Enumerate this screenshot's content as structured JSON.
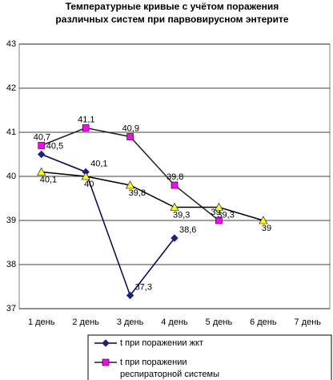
{
  "chart_data": {
    "type": "line",
    "title": [
      "Температурные кривые с учётом поражения",
      "различных систем при парвовирусном энтерите"
    ],
    "categories": [
      "1 день",
      "2 день",
      "3 день",
      "4 день",
      "5 день",
      "6 день",
      "7 день"
    ],
    "series": [
      {
        "name": "t при поражении жкт",
        "color": "#1a237e",
        "line_color": "#000060",
        "marker": "diamond",
        "values": [
          40.5,
          40.1,
          37.3,
          38.6,
          null,
          null,
          null
        ],
        "value_labels": [
          "40,5",
          "40,1",
          "37,3",
          "38,6",
          null,
          null,
          null
        ]
      },
      {
        "name": [
          "t при поражении",
          "респираторной системы"
        ],
        "color": "#ff00ff",
        "line_color": "#202020",
        "marker": "square",
        "values": [
          40.7,
          41.1,
          40.9,
          39.8,
          39,
          null,
          null
        ],
        "value_labels": [
          "40,7",
          "41,1",
          "40,9",
          "39,8",
          "39",
          null,
          null
        ]
      },
      {
        "color": "#ffff00",
        "line_color": "#000000",
        "marker": "triangle",
        "values": [
          40.1,
          40,
          39.8,
          39.3,
          39.3,
          39,
          null
        ],
        "value_labels": [
          "40,1",
          "40",
          "39,8",
          "39,3",
          "39,3",
          "39",
          null
        ]
      }
    ],
    "ylim": [
      37,
      43
    ],
    "yticks": [
      37,
      38,
      39,
      40,
      41,
      42,
      43
    ],
    "grid": true
  }
}
